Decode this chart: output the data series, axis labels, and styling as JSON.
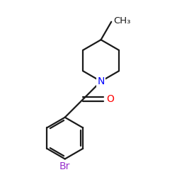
{
  "background_color": "#ffffff",
  "bond_color": "#1a1a1a",
  "N_color": "#0000ff",
  "O_color": "#ff0000",
  "Br_color": "#9932cc",
  "CH3_label": "CH₃",
  "N_label": "N",
  "O_label": "O",
  "Br_label": "Br",
  "line_width": 1.6,
  "font_size_atom": 10,
  "font_size_methyl": 9.5
}
